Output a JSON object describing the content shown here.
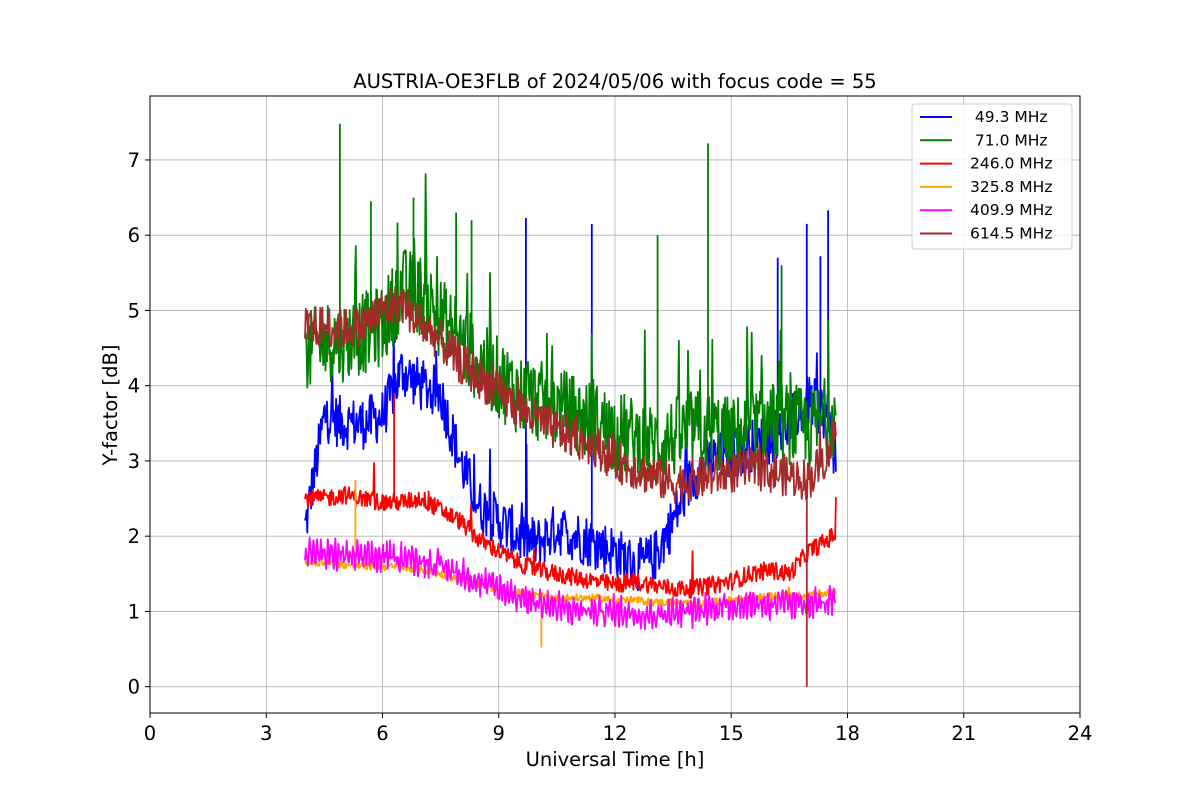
{
  "chart_data": {
    "type": "line",
    "title": "AUSTRIA-OE3FLB of 2024/05/06 with focus code = 55",
    "xlabel": "Universal Time [h]",
    "ylabel": "Y-factor [dB]",
    "xlim": [
      0,
      24
    ],
    "ylim": [
      -0.35,
      7.85
    ],
    "xticks": [
      0,
      3,
      6,
      9,
      12,
      15,
      18,
      21,
      24
    ],
    "yticks": [
      0,
      1,
      2,
      3,
      4,
      5,
      6,
      7
    ],
    "grid": true,
    "legend_position": "top-right",
    "x": [
      4.0,
      4.5,
      5.0,
      5.5,
      6.0,
      6.5,
      7.0,
      7.5,
      8.0,
      8.5,
      9.0,
      9.5,
      10.0,
      10.5,
      11.0,
      11.5,
      12.0,
      12.5,
      13.0,
      13.5,
      14.0,
      14.5,
      15.0,
      15.5,
      16.0,
      16.5,
      17.0,
      17.5,
      17.7
    ],
    "series": [
      {
        "name": " 49.3 MHz",
        "color": "#0000ff",
        "values": [
          2.1,
          3.6,
          3.5,
          3.5,
          3.6,
          4.2,
          4.0,
          3.9,
          3.0,
          2.4,
          2.2,
          2.0,
          1.9,
          2.1,
          2.0,
          1.9,
          1.8,
          1.6,
          1.7,
          2.2,
          2.8,
          3.0,
          3.1,
          3.2,
          3.3,
          3.5,
          3.8,
          3.6,
          3.0
        ]
      },
      {
        "name": " 71.0 MHz",
        "color": "#008000",
        "values": [
          4.4,
          4.6,
          4.6,
          4.7,
          4.8,
          5.3,
          5.2,
          4.9,
          4.6,
          4.3,
          4.1,
          3.9,
          3.8,
          3.7,
          3.6,
          3.5,
          3.4,
          3.3,
          3.2,
          3.3,
          3.4,
          3.4,
          3.3,
          3.4,
          3.5,
          3.5,
          3.4,
          3.6,
          3.6
        ]
      },
      {
        "name": "246.0 MHz",
        "color": "#ff0000",
        "values": [
          2.5,
          2.5,
          2.55,
          2.5,
          2.45,
          2.45,
          2.5,
          2.35,
          2.2,
          1.95,
          1.8,
          1.65,
          1.55,
          1.5,
          1.45,
          1.4,
          1.35,
          1.4,
          1.35,
          1.3,
          1.3,
          1.35,
          1.4,
          1.5,
          1.55,
          1.5,
          1.8,
          1.95,
          2.05
        ]
      },
      {
        "name": "325.8 MHz",
        "color": "#ffa500",
        "values": [
          1.65,
          1.65,
          1.62,
          1.6,
          1.6,
          1.58,
          1.55,
          1.5,
          1.42,
          1.35,
          1.3,
          1.25,
          1.2,
          1.18,
          1.18,
          1.18,
          1.15,
          1.15,
          1.12,
          1.12,
          1.1,
          1.12,
          1.15,
          1.18,
          1.2,
          1.2,
          1.22,
          1.25,
          1.25
        ]
      },
      {
        "name": "409.9 MHz",
        "color": "#ff00ff",
        "values": [
          1.8,
          1.75,
          1.75,
          1.72,
          1.72,
          1.72,
          1.68,
          1.6,
          1.5,
          1.4,
          1.3,
          1.2,
          1.12,
          1.05,
          1.02,
          1.0,
          1.0,
          0.98,
          0.95,
          0.98,
          1.0,
          1.05,
          1.08,
          1.1,
          1.1,
          1.1,
          1.1,
          1.12,
          1.12
        ]
      },
      {
        "name": "614.5 MHz",
        "color": "#a52a2a",
        "values": [
          4.75,
          4.8,
          4.75,
          4.8,
          5.0,
          5.1,
          4.8,
          4.6,
          4.3,
          4.1,
          3.9,
          3.7,
          3.55,
          3.4,
          3.3,
          3.2,
          3.0,
          2.9,
          2.8,
          2.7,
          2.75,
          2.8,
          2.85,
          2.9,
          2.85,
          2.8,
          2.75,
          3.1,
          3.45
        ]
      }
    ],
    "spikes": [
      {
        "series": 1,
        "x": 4.9,
        "y": 7.48
      },
      {
        "series": 1,
        "x": 14.4,
        "y": 7.22
      },
      {
        "series": 1,
        "x": 6.8,
        "y": 6.5
      },
      {
        "series": 1,
        "x": 5.7,
        "y": 6.45
      },
      {
        "series": 1,
        "x": 7.9,
        "y": 6.3
      },
      {
        "series": 1,
        "x": 8.3,
        "y": 6.2
      },
      {
        "series": 1,
        "x": 13.1,
        "y": 6.0
      },
      {
        "series": 1,
        "x": 16.3,
        "y": 5.6
      },
      {
        "series": 0,
        "x": 9.7,
        "y": 6.23
      },
      {
        "series": 0,
        "x": 11.4,
        "y": 6.15
      },
      {
        "series": 0,
        "x": 17.5,
        "y": 6.33
      },
      {
        "series": 0,
        "x": 16.95,
        "y": 6.15
      },
      {
        "series": 0,
        "x": 16.2,
        "y": 5.7
      },
      {
        "series": 0,
        "x": 17.3,
        "y": 5.72
      },
      {
        "series": 5,
        "x": 16.95,
        "y": 0.0
      },
      {
        "series": 3,
        "x": 10.1,
        "y": 0.52
      },
      {
        "series": 3,
        "x": 5.3,
        "y": 2.75
      },
      {
        "series": 2,
        "x": 6.3,
        "y": 3.9
      }
    ]
  }
}
